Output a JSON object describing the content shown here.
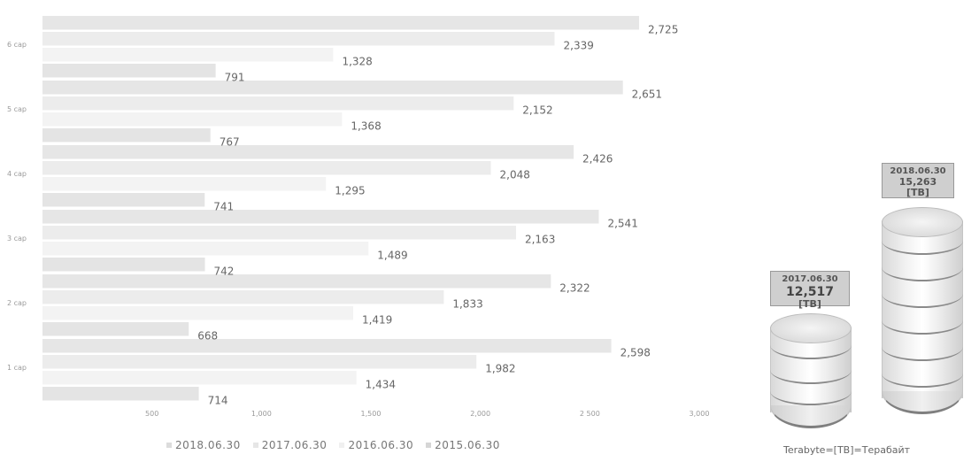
{
  "chart_data": {
    "type": "bar",
    "orientation": "horizontal",
    "categories": [
      "6 cap",
      "5 cap",
      "4 cap",
      "3 cap",
      "2 cap",
      "1 cap"
    ],
    "series": [
      {
        "name": "2018.06.30",
        "values": [
          2725,
          2651,
          2426,
          2541,
          2322,
          2598
        ],
        "labels": [
          "2,725",
          "2,651",
          "2,426",
          "2,541",
          "2,322",
          "2,598"
        ],
        "color": "#e6e6e6"
      },
      {
        "name": "2017.06.30",
        "values": [
          2339,
          2152,
          2048,
          2163,
          1833,
          1982
        ],
        "labels": [
          "2,339",
          "2,152",
          "2,048",
          "2,163",
          "1,833",
          "1,982"
        ],
        "color": "#ececec"
      },
      {
        "name": "2016.06.30",
        "values": [
          1328,
          1368,
          1295,
          1489,
          1419,
          1434
        ],
        "labels": [
          "1,328",
          "1,368",
          "1,295",
          "1,489",
          "1,419",
          "1,434"
        ],
        "color": "#f3f3f3"
      },
      {
        "name": "2015.06.30",
        "values": [
          791,
          767,
          741,
          742,
          668,
          714
        ],
        "labels": [
          "791",
          "767",
          "741",
          "742",
          "668",
          "714"
        ],
        "color": "#e4e4e4"
      }
    ],
    "xticks": [
      500,
      1000,
      1500,
      2000,
      2500,
      3000
    ],
    "xtick_labels": [
      "500",
      "1,000",
      "1,500",
      "2,000",
      "2 500",
      "3,000"
    ],
    "xlim": [
      0,
      3000
    ],
    "legend_position": "bottom",
    "grid": false
  },
  "capacity": {
    "box_2017": {
      "date": "2017.06.30",
      "value": "12,517",
      "unit": "[TB]"
    },
    "box_2018": {
      "date": "2018.06.30",
      "value": "15,263",
      "unit": "[TB]"
    },
    "footnote": "Terabyte=[TB]=Терабайт"
  }
}
